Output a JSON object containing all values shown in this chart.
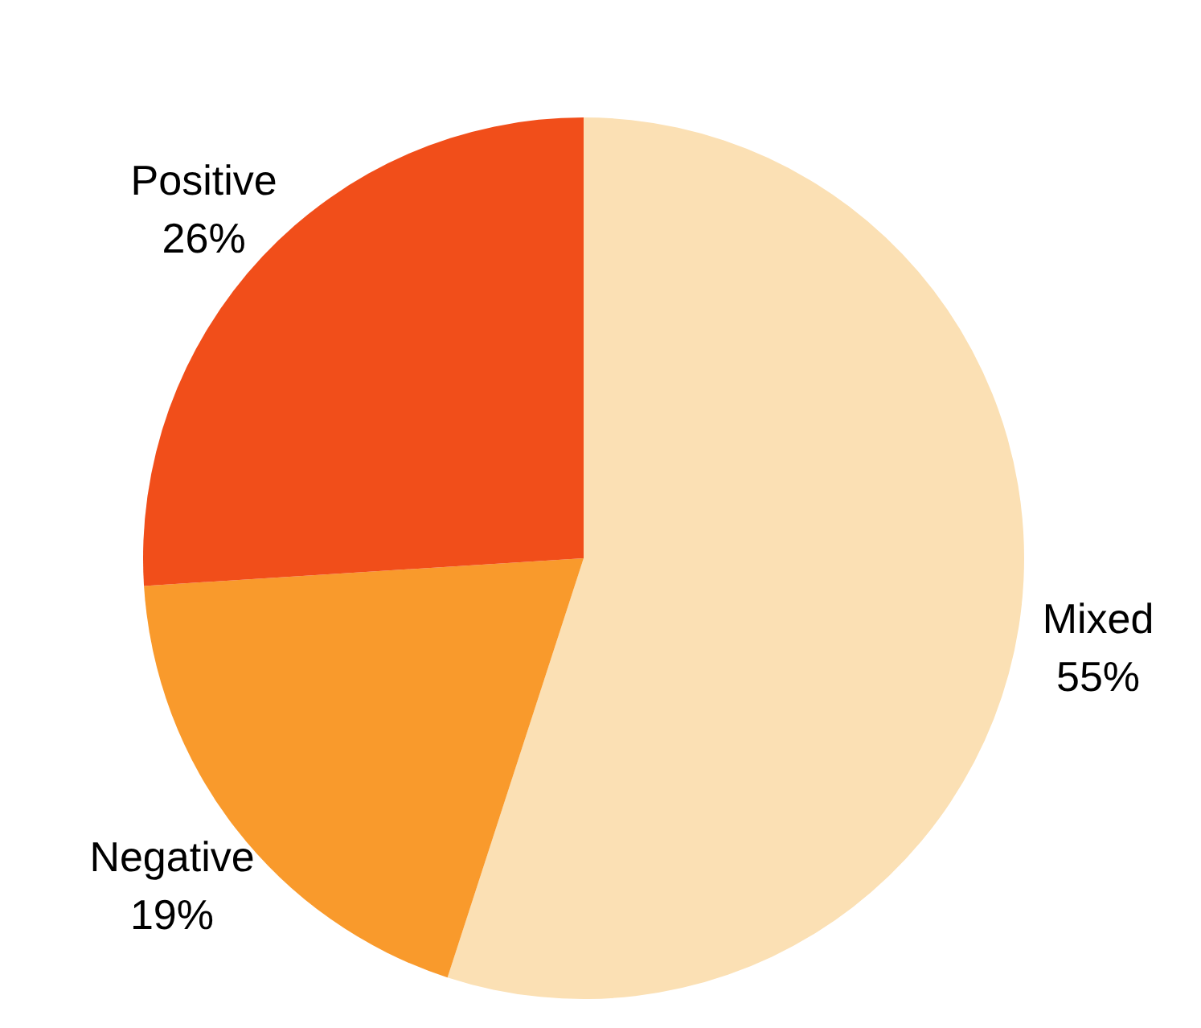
{
  "chart_data": {
    "type": "pie",
    "categories": [
      "Mixed",
      "Negative",
      "Positive"
    ],
    "values": [
      55,
      19,
      26
    ],
    "value_labels": [
      "55%",
      "19%",
      "26%"
    ],
    "colors": [
      "#fbe0b4",
      "#f99a2c",
      "#f14e1a"
    ]
  }
}
